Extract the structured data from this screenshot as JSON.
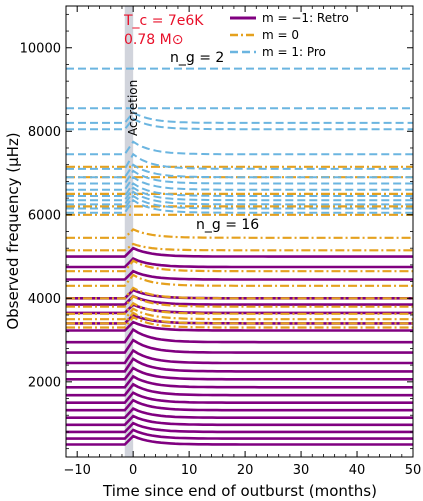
{
  "chart_data": {
    "type": "line",
    "xlabel": "Time since end of outburst (months)",
    "ylabel": "Observed frequency (μHz)",
    "xlim": [
      -12,
      50
    ],
    "ylim": [
      200,
      11000
    ],
    "xticks": [
      -10,
      0,
      10,
      20,
      30,
      40,
      50
    ],
    "yticks": [
      2000,
      4000,
      6000,
      8000,
      10000
    ],
    "x_start": -12,
    "x_end": 50,
    "accretion_band": [
      -1.5,
      0
    ],
    "accretion_label": "Accretion",
    "annotations": {
      "tc": "T_c = 7e6K",
      "mass": "0.78 M⊙",
      "ng_low": "n_g = 2",
      "ng_high": "n_g = 16"
    },
    "legend": {
      "placement": "top-right",
      "entries": [
        {
          "label": "m = −1: Retro",
          "color": "#800080",
          "style": "solid"
        },
        {
          "label": "m = 0",
          "color": "#E5A11E",
          "style": "dashdot"
        },
        {
          "label": "m = 1: Pro",
          "color": "#6BB5E0",
          "style": "dashed"
        }
      ]
    },
    "series": [
      {
        "m": -1,
        "color": "#800080",
        "style": "solid",
        "final": [
          5000,
          4750,
          4450,
          4000,
          3850,
          3650,
          3400,
          3230,
          2950,
          2700,
          2450,
          2250,
          2060,
          1870,
          1680,
          1500,
          1320,
          1140,
          970,
          800,
          640,
          500
        ],
        "peak": [
          5200,
          4950,
          4650,
          4200,
          4050,
          3850,
          3600,
          3430,
          3250,
          3000,
          2750,
          2550,
          2330,
          2130,
          1940,
          1740,
          1560,
          1360,
          1180,
          1010,
          850,
          700
        ]
      },
      {
        "m": 0,
        "color": "#E5A11E",
        "style": "dashdot",
        "final": [
          7150,
          6900,
          6500,
          6200,
          6000,
          5450,
          5150,
          4650,
          4300,
          4000,
          3800,
          3630,
          3500,
          3400,
          3300
        ],
        "peak": [
          7150,
          6900,
          6500,
          6200,
          6000,
          5650,
          5300,
          4900,
          4560,
          4250,
          4050,
          3880,
          3750,
          3650,
          3550
        ]
      },
      {
        "m": 1,
        "color": "#6BB5E0",
        "style": "dashed",
        "final": [
          9500,
          8550,
          8200,
          8050,
          7450,
          7100,
          6900,
          6750,
          6600,
          6450,
          6350,
          6250,
          6150,
          6050
        ],
        "peak": [
          9500,
          8550,
          8450,
          8300,
          7750,
          7450,
          7200,
          7050,
          6900,
          6750,
          6650,
          6550,
          6450,
          6350
        ]
      }
    ]
  }
}
